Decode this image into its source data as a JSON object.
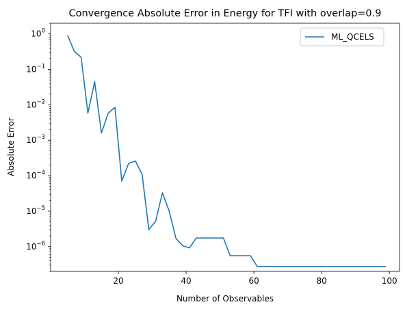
{
  "chart_data": {
    "type": "line",
    "title": "Convergence Absolute Error in Energy for TFI with overlap=0.9",
    "xlabel": "Number of Observables",
    "ylabel": "Absolute Error",
    "xlim": [
      0,
      103
    ],
    "ylim": [
      2e-07,
      2.0
    ],
    "yscale": "log",
    "grid": false,
    "legend_position": "top-right",
    "x_ticks": [
      20,
      40,
      60,
      80,
      100
    ],
    "x_tick_labels": [
      "20",
      "40",
      "60",
      "80",
      "100"
    ],
    "y_tick_exponents": [
      0,
      -1,
      -2,
      -3,
      -4,
      -5,
      -6
    ],
    "series": [
      {
        "name": "ML_QCELS",
        "color": "#1f77b4",
        "x": [
          5,
          7,
          9,
          11,
          13,
          15,
          17,
          19,
          21,
          23,
          25,
          27,
          29,
          31,
          33,
          35,
          37,
          39,
          41,
          43,
          45,
          47,
          49,
          51,
          53,
          55,
          57,
          59,
          61,
          63,
          65,
          67,
          69,
          71,
          73,
          75,
          77,
          79,
          81,
          83,
          85,
          87,
          89,
          91,
          93,
          95,
          97,
          99
        ],
        "y": [
          0.92,
          0.32,
          0.22,
          0.0058,
          0.045,
          0.0016,
          0.0058,
          0.0085,
          7e-05,
          0.00022,
          0.00026,
          0.00011,
          3e-06,
          5.2e-06,
          3.3e-05,
          1e-05,
          1.7e-06,
          1.05e-06,
          9.2e-07,
          1.75e-06,
          1.75e-06,
          1.75e-06,
          1.75e-06,
          1.75e-06,
          5.5e-07,
          5.5e-07,
          5.5e-07,
          5.5e-07,
          2.75e-07,
          2.75e-07,
          2.75e-07,
          2.75e-07,
          2.75e-07,
          2.75e-07,
          2.75e-07,
          2.75e-07,
          2.75e-07,
          2.75e-07,
          2.75e-07,
          2.75e-07,
          2.75e-07,
          2.75e-07,
          2.75e-07,
          2.75e-07,
          2.75e-07,
          2.75e-07,
          2.75e-07,
          2.75e-07
        ]
      }
    ]
  }
}
